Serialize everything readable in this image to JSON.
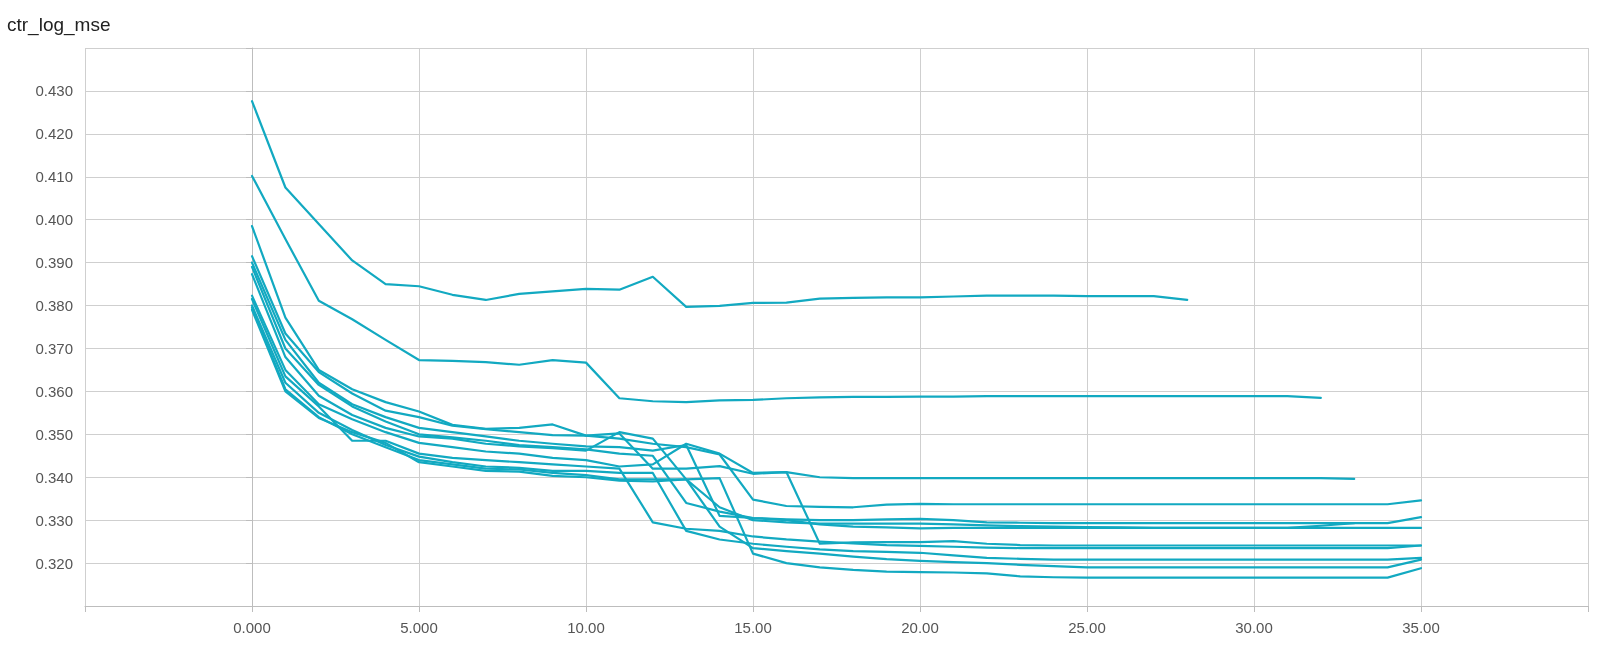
{
  "chart_data": {
    "type": "line",
    "title": "ctr_log_mse",
    "x": [
      0,
      1,
      2,
      3,
      4,
      5,
      6,
      7,
      8,
      9,
      10,
      11,
      12,
      13,
      14,
      15,
      16,
      17,
      18,
      19,
      20,
      21,
      22,
      23,
      24,
      25,
      26,
      27,
      28,
      29,
      30,
      31,
      32,
      33,
      34,
      35
    ],
    "xlim": [
      -5,
      40
    ],
    "xticks": [
      {
        "value": -5,
        "label": null
      },
      {
        "value": 0,
        "label": "0.000"
      },
      {
        "value": 5,
        "label": "5.000"
      },
      {
        "value": 10,
        "label": "10.00"
      },
      {
        "value": 15,
        "label": "15.00"
      },
      {
        "value": 20,
        "label": "20.00"
      },
      {
        "value": 25,
        "label": "25.00"
      },
      {
        "value": 30,
        "label": "30.00"
      },
      {
        "value": 35,
        "label": "35.00"
      },
      {
        "value": 40,
        "label": null
      }
    ],
    "ylim": [
      0.31,
      0.44
    ],
    "yticks": [
      {
        "value": 0.31,
        "label": null
      },
      {
        "value": 0.32,
        "label": "0.320"
      },
      {
        "value": 0.33,
        "label": "0.330"
      },
      {
        "value": 0.34,
        "label": "0.340"
      },
      {
        "value": 0.35,
        "label": "0.350"
      },
      {
        "value": 0.36,
        "label": "0.360"
      },
      {
        "value": 0.37,
        "label": "0.370"
      },
      {
        "value": 0.38,
        "label": "0.380"
      },
      {
        "value": 0.39,
        "label": "0.390"
      },
      {
        "value": 0.4,
        "label": "0.400"
      },
      {
        "value": 0.41,
        "label": "0.410"
      },
      {
        "value": 0.42,
        "label": "0.420"
      },
      {
        "value": 0.43,
        "label": "0.430"
      },
      {
        "value": 0.44,
        "label": null
      }
    ],
    "grid": true,
    "marker": "none",
    "line_style": "solid",
    "series": [
      {
        "color": "#12a9c1",
        "values": [
          0.4276,
          0.4075,
          0.399,
          0.3905,
          0.385,
          0.3845,
          0.3825,
          0.3813,
          0.3827,
          0.3833,
          0.3839,
          0.3837,
          0.3867,
          0.3797,
          0.3799,
          0.3806,
          0.3807,
          0.3816,
          0.3818,
          0.3819,
          0.3819,
          0.3821,
          0.3823,
          0.3823,
          0.3823,
          0.3822,
          0.3822,
          0.3822,
          0.3813,
          null,
          null,
          null,
          null,
          null,
          null,
          null
        ]
      },
      {
        "color": "#12a9c1",
        "values": [
          0.4102,
          0.3955,
          0.3811,
          0.3768,
          0.372,
          0.3673,
          0.3671,
          0.3668,
          0.3662,
          0.3673,
          0.3667,
          0.3584,
          0.3577,
          0.3575,
          0.3579,
          0.358,
          0.3584,
          0.3586,
          0.3587,
          0.3587,
          0.3588,
          0.3588,
          0.3589,
          0.3589,
          0.3589,
          0.3589,
          0.3589,
          0.3589,
          0.3589,
          0.3589,
          0.3589,
          0.3589,
          0.3585,
          null,
          null,
          null
        ]
      },
      {
        "color": "#12a9c1",
        "values": [
          0.3985,
          0.3772,
          0.365,
          0.3605,
          0.3575,
          0.3553,
          0.3522,
          0.3513,
          0.3515,
          0.3523,
          0.3497,
          0.3502,
          0.342,
          0.342,
          0.3426,
          0.3408,
          0.3412,
          0.34,
          0.3398,
          0.3398,
          0.3398,
          0.3398,
          0.3398,
          0.3398,
          0.3398,
          0.3398,
          0.3398,
          0.3398,
          0.3398,
          0.3398,
          0.3398,
          0.3398,
          0.3398,
          0.3396,
          null,
          null
        ]
      },
      {
        "color": "#12a9c1",
        "values": [
          0.3915,
          0.3735,
          0.3645,
          0.3595,
          0.3555,
          0.354,
          0.352,
          0.3512,
          0.3505,
          0.3498,
          0.3497,
          0.349,
          0.3478,
          0.347,
          0.3453,
          0.3348,
          0.3333,
          0.3331,
          0.333,
          0.3336,
          0.3338,
          0.3337,
          0.3337,
          0.3337,
          0.3337,
          0.3337,
          0.3337,
          0.3337,
          0.3337,
          0.3337,
          0.3337,
          0.3337,
          0.3337,
          0.3337,
          0.3337,
          0.3346
        ]
      },
      {
        "color": "#12a9c1",
        "values": [
          0.39,
          0.372,
          0.362,
          0.357,
          0.354,
          0.3515,
          0.3505,
          0.3495,
          0.3485,
          0.3478,
          0.3472,
          0.347,
          0.3462,
          0.3475,
          0.331,
          0.3305,
          0.3302,
          0.33,
          0.33,
          0.3302,
          0.3303,
          0.33,
          0.3295,
          0.3294,
          0.3293,
          0.3293,
          0.3293,
          0.3293,
          0.3293,
          0.3293,
          0.3293,
          0.3293,
          0.3293,
          0.3293,
          0.3293,
          0.3307
        ]
      },
      {
        "color": "#12a9c1",
        "values": [
          0.389,
          0.37,
          0.3615,
          0.3565,
          0.353,
          0.35,
          0.3493,
          0.3485,
          0.3475,
          0.347,
          0.3465,
          0.3455,
          0.345,
          0.334,
          0.332,
          0.3305,
          0.33,
          0.329,
          0.3285,
          0.3283,
          0.3281,
          0.3282,
          0.3282,
          0.3282,
          0.3282,
          0.3282,
          0.3282,
          0.3282,
          0.3282,
          0.3282,
          0.3282,
          0.3282,
          0.3282,
          0.3282,
          0.3282,
          0.3282
        ]
      },
      {
        "color": "#12a9c1",
        "values": [
          0.3873,
          0.368,
          0.359,
          0.3545,
          0.3515,
          0.3495,
          0.349,
          0.3478,
          0.3472,
          0.3468,
          0.3462,
          0.3505,
          0.349,
          0.3395,
          0.333,
          0.33,
          0.3295,
          0.3292,
          0.3292,
          0.3292,
          0.3292,
          0.329,
          0.3288,
          0.3286,
          0.3285,
          0.3284,
          0.3283,
          0.3282,
          0.3282,
          0.3282,
          0.3282,
          0.3282,
          0.3287,
          0.3293,
          null,
          null
        ]
      },
      {
        "color": "#12a9c1",
        "values": [
          0.3823,
          0.365,
          0.357,
          0.3535,
          0.3505,
          0.348,
          0.347,
          0.346,
          0.3455,
          0.3445,
          0.344,
          0.3425,
          0.343,
          0.3478,
          0.3455,
          0.341,
          0.3412,
          0.3245,
          0.3248,
          0.3249,
          0.3249,
          0.3251,
          0.3245,
          0.3242,
          0.3241,
          0.3241,
          0.3241,
          0.3241,
          0.3241,
          0.3241,
          0.3241,
          0.3241,
          0.3241,
          0.3241,
          0.3241,
          0.3241
        ]
      },
      {
        "color": "#12a9c1",
        "values": [
          0.3815,
          0.3635,
          0.3565,
          0.3485,
          0.3485,
          0.3455,
          0.3445,
          0.344,
          0.3435,
          0.343,
          0.3425,
          0.342,
          0.3295,
          0.328,
          0.3275,
          0.3262,
          0.3255,
          0.325,
          0.3246,
          0.3242,
          0.324,
          0.3238,
          0.3236,
          0.3235,
          0.3235,
          0.3235,
          0.3235,
          0.3235,
          0.3235,
          0.3235,
          0.3235,
          0.3235,
          0.3235,
          0.3235,
          0.3235,
          0.3241
        ]
      },
      {
        "color": "#12a9c1",
        "values": [
          0.38,
          0.362,
          0.355,
          0.351,
          0.3475,
          0.3448,
          0.3435,
          0.3425,
          0.3422,
          0.3415,
          0.3415,
          0.341,
          0.341,
          0.3275,
          0.3255,
          0.3245,
          0.3238,
          0.3232,
          0.3228,
          0.3226,
          0.3224,
          0.3218,
          0.3212,
          0.321,
          0.3208,
          0.3208,
          0.3208,
          0.3208,
          0.3208,
          0.3208,
          0.3208,
          0.3208,
          0.3208,
          0.3208,
          0.3208,
          0.3212
        ]
      },
      {
        "color": "#12a9c1",
        "values": [
          0.3795,
          0.3605,
          0.354,
          0.35,
          0.347,
          0.344,
          0.343,
          0.342,
          0.3418,
          0.341,
          0.3405,
          0.3395,
          0.3395,
          0.3395,
          0.3285,
          0.3235,
          0.3228,
          0.3222,
          0.3215,
          0.3209,
          0.3205,
          0.3202,
          0.32,
          0.3196,
          0.3193,
          0.319,
          0.319,
          0.319,
          0.319,
          0.319,
          0.319,
          0.319,
          0.319,
          0.319,
          0.319,
          0.3208
        ]
      },
      {
        "color": "#12a9c1",
        "values": [
          0.379,
          0.36,
          0.3538,
          0.3505,
          0.348,
          0.3435,
          0.3425,
          0.3415,
          0.3413,
          0.3403,
          0.34,
          0.3392,
          0.339,
          0.3395,
          0.3398,
          0.3222,
          0.32,
          0.319,
          0.3184,
          0.318,
          0.3179,
          0.3178,
          0.3176,
          0.3169,
          0.3167,
          0.3166,
          0.3166,
          0.3166,
          0.3166,
          0.3166,
          0.3166,
          0.3166,
          0.3166,
          0.3166,
          0.3166,
          0.3188
        ]
      }
    ]
  }
}
